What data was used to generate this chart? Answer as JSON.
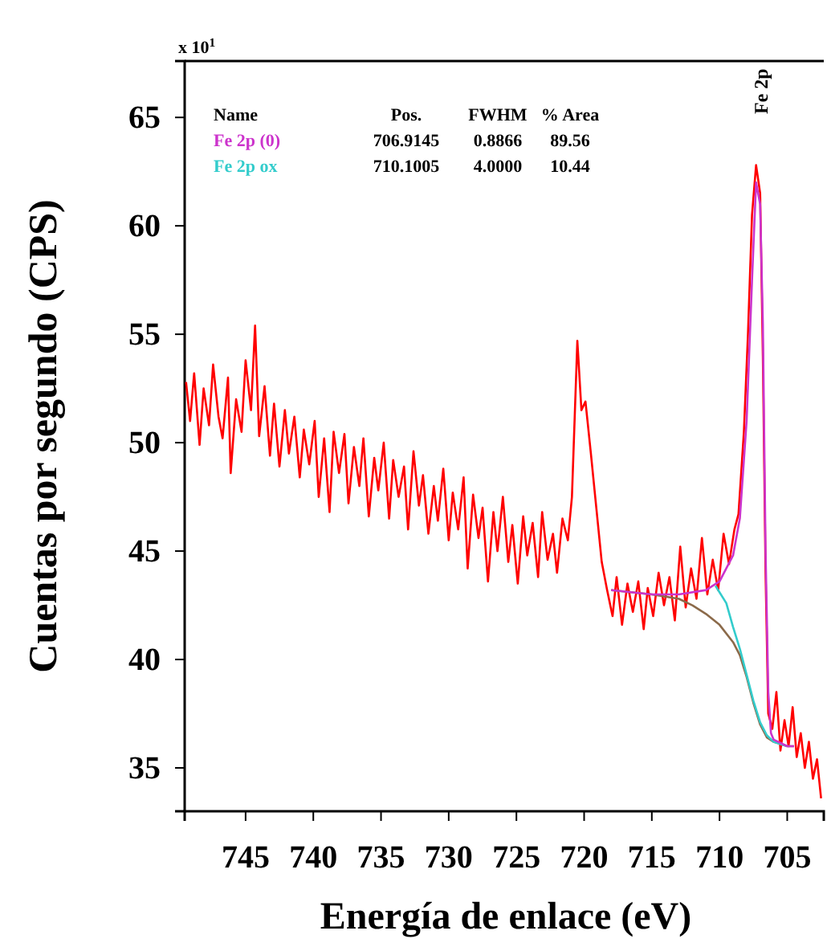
{
  "chart_data": {
    "type": "line",
    "xlabel": "Energía de enlace (eV)",
    "ylabel": "Cuentas por segundo (CPS)",
    "legend_title": "Name",
    "legend": "top left",
    "grid": false,
    "xlim": [
      749.5,
      702.3
    ],
    "ylim": [
      33,
      67.6
    ],
    "xticks": [
      745,
      740,
      735,
      730,
      725,
      720,
      715,
      710,
      705
    ],
    "yticks": [
      35,
      40,
      45,
      50,
      55,
      60,
      65
    ],
    "annotations": [
      "Pos.",
      "FWHM",
      "% Area",
      "706.9145",
      "0.8866",
      "89.56",
      "710.1005",
      "4.0000",
      "10.44",
      "x 10$^{1}$",
      "Fe 2p"
    ],
    "series": [
      {
        "color": "#ff0000",
        "x": [
          749.4,
          749.1,
          748.8,
          748.4,
          748.1,
          747.7,
          747.4,
          747.0,
          746.7,
          746.3,
          746.1,
          745.7,
          745.3,
          745.0,
          744.6,
          744.3,
          744.0,
          743.6,
          743.2,
          742.9,
          742.5,
          742.1,
          741.8,
          741.4,
          741.0,
          740.7,
          740.3,
          739.9,
          739.6,
          739.2,
          738.8,
          738.5,
          738.1,
          737.7,
          737.4,
          737.0,
          736.6,
          736.3,
          735.9,
          735.5,
          735.2,
          734.8,
          734.4,
          734.1,
          733.7,
          733.3,
          733.0,
          732.6,
          732.2,
          731.9,
          731.5,
          731.1,
          730.8,
          730.4,
          730.0,
          729.7,
          729.3,
          728.9,
          728.6,
          728.2,
          727.8,
          727.5,
          727.1,
          726.7,
          726.4,
          726.0,
          725.6,
          725.3,
          724.9,
          724.5,
          724.2,
          723.8,
          723.4,
          723.1,
          722.7,
          722.3,
          722.0,
          721.6,
          721.2,
          720.9,
          720.5,
          720.2,
          719.9,
          719.5,
          719.1,
          718.7,
          718.3,
          717.9,
          717.6,
          717.2,
          716.8,
          716.4,
          716.0,
          715.6,
          715.3,
          714.9,
          714.5,
          714.1,
          713.7,
          713.3,
          712.9,
          712.5,
          712.1,
          711.7,
          711.3,
          710.9,
          710.5,
          710.1,
          709.7,
          709.3,
          708.9,
          708.6,
          708.2,
          707.9,
          707.6,
          707.3,
          707.0,
          706.8,
          706.6,
          706.4,
          706.1,
          705.8,
          705.5,
          705.2,
          704.9,
          704.6,
          704.3,
          704.0,
          703.7,
          703.4,
          703.1,
          702.8,
          702.5
        ],
        "values": [
          52.8,
          51.0,
          53.2,
          49.9,
          52.5,
          50.8,
          53.6,
          51.2,
          50.2,
          53.0,
          48.6,
          52.0,
          50.5,
          53.8,
          51.5,
          55.4,
          50.3,
          52.6,
          49.4,
          51.8,
          48.9,
          51.5,
          49.5,
          51.2,
          48.4,
          50.6,
          49.0,
          51.0,
          47.5,
          50.2,
          46.8,
          50.5,
          48.6,
          50.4,
          47.2,
          49.8,
          48.0,
          50.2,
          46.6,
          49.3,
          47.8,
          50.0,
          46.5,
          49.2,
          47.5,
          48.9,
          46.0,
          49.6,
          47.1,
          48.5,
          45.8,
          48.0,
          46.4,
          48.8,
          45.5,
          47.7,
          46.0,
          48.4,
          44.2,
          47.6,
          45.6,
          47.0,
          43.6,
          46.8,
          45.0,
          47.5,
          44.5,
          46.2,
          43.5,
          46.6,
          44.8,
          46.3,
          43.8,
          46.8,
          44.6,
          45.8,
          44.0,
          46.5,
          45.5,
          47.5,
          54.7,
          51.5,
          51.9,
          49.5,
          47.0,
          44.5,
          43.2,
          42.0,
          43.8,
          41.6,
          43.5,
          42.2,
          43.6,
          41.4,
          43.3,
          42.0,
          44.0,
          42.5,
          43.8,
          41.8,
          45.2,
          42.4,
          44.2,
          42.8,
          45.6,
          43.0,
          44.6,
          43.2,
          45.8,
          44.4,
          46.0,
          46.7,
          50.5,
          55.0,
          60.5,
          62.8,
          61.5,
          54.0,
          44.0,
          37.5,
          36.8,
          38.5,
          35.8,
          37.2,
          36.0,
          37.8,
          35.5,
          36.6,
          35.0,
          36.2,
          34.5,
          35.4,
          33.6
        ]
      },
      {
        "color": "#8b6a4a",
        "x": [
          718,
          715,
          713,
          712,
          711,
          710,
          709,
          708.5,
          708,
          707.5,
          707,
          706.5,
          706,
          705.5,
          705,
          704.5
        ],
        "values": [
          43.2,
          43.0,
          42.8,
          42.5,
          42.1,
          41.6,
          40.8,
          40.2,
          39.2,
          38.0,
          37.0,
          36.4,
          36.2,
          36.1,
          36.0,
          36.0
        ]
      },
      {
        "name": "Fe 2p ox",
        "color": "#33cccc",
        "x": [
          710.3,
          709.5,
          709,
          708.5,
          708,
          707.5,
          707,
          706.5,
          706,
          705
        ],
        "values": [
          43.4,
          42.6,
          41.5,
          40.5,
          39.3,
          38.1,
          37.1,
          36.5,
          36.2,
          36.0
        ]
      },
      {
        "name": "Fe 2p (0)",
        "color": "#cc33cc",
        "x": [
          718,
          715,
          713,
          711,
          710,
          709,
          708.5,
          708,
          707.6,
          707.3,
          707.0,
          706.8,
          706.6,
          706.4,
          706.2,
          706,
          705,
          704.5
        ],
        "values": [
          43.2,
          43.0,
          43.0,
          43.2,
          43.6,
          44.8,
          46.5,
          51.0,
          57.5,
          62.0,
          61.0,
          55.5,
          45.0,
          38.5,
          36.6,
          36.3,
          36.0,
          36.0
        ]
      }
    ]
  }
}
